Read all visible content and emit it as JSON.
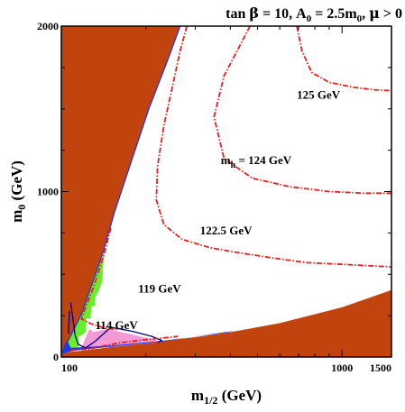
{
  "chart_data": {
    "type": "contour",
    "title": {
      "parts": [
        {
          "text": "tan "
        },
        {
          "text": "β",
          "symbol": true
        },
        {
          "text": " = 10, A"
        },
        {
          "text": "0",
          "sub": true
        },
        {
          "text": " = 2.5m"
        },
        {
          "text": "0",
          "sub": true
        },
        {
          "text": ",  "
        },
        {
          "text": "μ",
          "symbol": true
        },
        {
          "text": " > 0"
        }
      ]
    },
    "xlabel": {
      "main": "m",
      "sub": "1/2",
      "rest": " (GeV)"
    },
    "ylabel": {
      "main": "m",
      "sub": "0",
      "rest": " (GeV)"
    },
    "xlim": [
      100,
      1500
    ],
    "ylim": [
      0,
      2000
    ],
    "x_scale": "log",
    "x_ticks": [
      {
        "value": 100,
        "label": "100"
      },
      {
        "value": 1000,
        "label": "1000"
      },
      {
        "value": 1500,
        "label": "1500"
      }
    ],
    "y_ticks": [
      {
        "value": 0,
        "label": "0"
      },
      {
        "value": 1000,
        "label": "1000"
      },
      {
        "value": 2000,
        "label": "2000"
      }
    ],
    "colors": {
      "excluded": "#c1440e",
      "cdm_strip": "#1f35e8",
      "bsgamma": "#66ee2a",
      "g_minus_2": "#f29ad6",
      "mh_contour": "#ee1c1c",
      "lep_chargino": "#000080"
    },
    "regions": [
      {
        "name": "excluded-upper-left",
        "color_key": "excluded",
        "points": [
          [
            100,
            2000
          ],
          [
            265,
            2000
          ],
          [
            240,
            1800
          ],
          [
            205,
            1500
          ],
          [
            175,
            1150
          ],
          [
            155,
            880
          ],
          [
            140,
            620
          ],
          [
            128,
            420
          ],
          [
            118,
            260
          ],
          [
            110,
            150
          ],
          [
            103,
            60
          ],
          [
            100,
            20
          ]
        ]
      },
      {
        "name": "excluded-lower-right",
        "color_key": "excluded",
        "points": [
          [
            100,
            0
          ],
          [
            1500,
            0
          ],
          [
            1500,
            405
          ],
          [
            1000,
            300
          ],
          [
            600,
            205
          ],
          [
            400,
            150
          ],
          [
            300,
            120
          ],
          [
            200,
            85
          ],
          [
            150,
            60
          ],
          [
            120,
            40
          ],
          [
            100,
            25
          ]
        ]
      },
      {
        "name": "bsgamma",
        "color_key": "bsgamma",
        "points": [
          [
            103,
            60
          ],
          [
            110,
            150
          ],
          [
            118,
            260
          ],
          [
            128,
            420
          ],
          [
            136,
            560
          ],
          [
            142,
            620
          ],
          [
            141,
            555
          ],
          [
            140,
            460
          ],
          [
            136,
            400
          ],
          [
            132,
            360
          ],
          [
            132,
            310
          ],
          [
            128,
            305
          ],
          [
            127,
            230
          ],
          [
            123,
            235
          ],
          [
            122,
            150
          ],
          [
            115,
            120
          ],
          [
            116,
            70
          ],
          [
            110,
            40
          ],
          [
            104,
            35
          ]
        ]
      },
      {
        "name": "g-minus-2",
        "color_key": "g_minus_2",
        "points": [
          [
            126,
            170
          ],
          [
            130,
            150
          ],
          [
            145,
            170
          ],
          [
            175,
            140
          ],
          [
            196,
            120
          ],
          [
            215,
            105
          ],
          [
            225,
            90
          ],
          [
            155,
            62
          ],
          [
            130,
            55
          ],
          [
            118,
            60
          ]
        ]
      },
      {
        "name": "cdm-strip",
        "color_key": "cdm_strip",
        "points": [
          [
            100,
            20
          ],
          [
            103,
            80
          ],
          [
            105,
            100
          ],
          [
            108,
            55
          ],
          [
            150,
            70
          ],
          [
            220,
            95
          ],
          [
            380,
            145
          ],
          [
            420,
            158
          ],
          [
            380,
            150
          ],
          [
            220,
            90
          ],
          [
            150,
            62
          ],
          [
            115,
            42
          ],
          [
            104,
            28
          ]
        ]
      }
    ],
    "lines": [
      {
        "name": "coannihilation-strip-line",
        "color_key": "cdm_strip",
        "dash": "none",
        "points": [
          [
            103,
            60
          ],
          [
            118,
            260
          ],
          [
            140,
            620
          ],
          [
            155,
            880
          ],
          [
            175,
            1150
          ],
          [
            205,
            1500
          ],
          [
            240,
            1800
          ],
          [
            265,
            2000
          ]
        ]
      },
      {
        "name": "lep-chargino-bound",
        "color_key": "lep_chargino",
        "dash": "none",
        "points": [
          [
            108,
            330
          ],
          [
            110,
            230
          ],
          [
            112,
            130
          ],
          [
            115,
            75
          ],
          [
            122,
            55
          ],
          [
            132,
            95
          ],
          [
            150,
            180
          ],
          [
            180,
            155
          ],
          [
            210,
            125
          ],
          [
            228,
            100
          ],
          [
            220,
            88
          ]
        ]
      },
      {
        "name": "lep-chargino-bound-2",
        "color_key": "lep_chargino",
        "dash": "none",
        "points": [
          [
            106,
            140
          ],
          [
            107,
            280
          ]
        ]
      },
      {
        "name": "mh-119-contour",
        "color_key": "mh_contour",
        "dash": "6,2,1.5,2",
        "points": [
          [
            108,
            42
          ],
          [
            125,
            48
          ],
          [
            160,
            85
          ],
          [
            200,
            105
          ],
          [
            240,
            118
          ],
          [
            260,
            124
          ]
        ]
      },
      {
        "name": "mh-124-contour",
        "color_key": "mh_contour",
        "dash": "6,2,1.5,2",
        "points": [
          [
            470,
            2000
          ],
          [
            380,
            1700
          ],
          [
            350,
            1450
          ],
          [
            380,
            1200
          ],
          [
            480,
            1080
          ],
          [
            650,
            1030
          ],
          [
            900,
            1000
          ],
          [
            1200,
            990
          ],
          [
            1500,
            990
          ]
        ]
      },
      {
        "name": "mh-125-contour",
        "color_key": "mh_contour",
        "dash": "6,2,1.5,2",
        "points": [
          [
            690,
            2000
          ],
          [
            720,
            1850
          ],
          [
            780,
            1720
          ],
          [
            900,
            1660
          ],
          [
            1100,
            1630
          ],
          [
            1300,
            1615
          ],
          [
            1500,
            1610
          ]
        ]
      },
      {
        "name": "mh-122.5-contour",
        "color_key": "mh_contour",
        "dash": "6,2,1.5,2",
        "points": [
          [
            280,
            2000
          ],
          [
            265,
            1850
          ],
          [
            250,
            1650
          ],
          [
            232,
            1400
          ],
          [
            220,
            1150
          ],
          [
            218,
            950
          ],
          [
            232,
            800
          ],
          [
            270,
            710
          ],
          [
            340,
            660
          ],
          [
            430,
            630
          ],
          [
            560,
            600
          ],
          [
            750,
            570
          ],
          [
            1000,
            560
          ],
          [
            1300,
            550
          ],
          [
            1500,
            545
          ]
        ]
      },
      {
        "name": "mh-114-contour",
        "color_key": "mh_contour",
        "dash": "6,2,1.5,2",
        "points": [
          [
            150,
            780
          ],
          [
            142,
            620
          ],
          [
            130,
            420
          ],
          [
            122,
            300
          ],
          [
            118,
            230
          ],
          [
            128,
            200
          ],
          [
            143,
            175
          ],
          [
            160,
            165
          ]
        ]
      }
    ],
    "annotations": [
      {
        "name": "label-125",
        "text": "125 GeV",
        "x": 690,
        "y": 1560
      },
      {
        "name": "label-124",
        "text": "m",
        "sub": "h",
        "rest": " = 124 GeV",
        "x": 370,
        "y": 1165
      },
      {
        "name": "label-122-5",
        "text": "122.5 GeV",
        "x": 312,
        "y": 740
      },
      {
        "name": "label-119",
        "text": "119 GeV",
        "x": 188,
        "y": 390
      },
      {
        "name": "label-114",
        "text": "114 GeV",
        "x": 132,
        "y": 170
      }
    ]
  }
}
